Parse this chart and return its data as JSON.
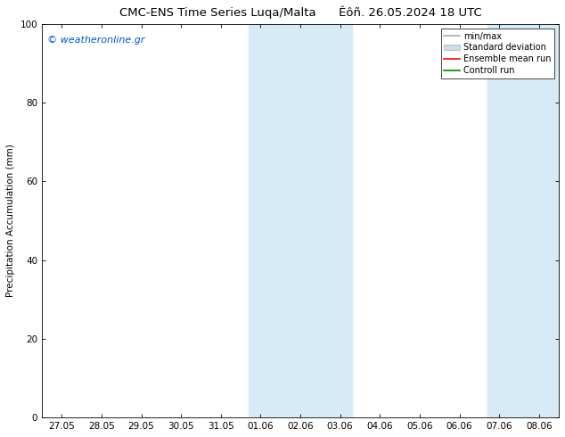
{
  "title": "CMC-ENS Time Series Luqa/Malta",
  "title_right": "Êôñ. 26.05.2024 18 UTC",
  "ylabel": "Precipitation Accumulation (mm)",
  "ylim": [
    0,
    100
  ],
  "yticks": [
    0,
    20,
    40,
    60,
    80,
    100
  ],
  "x_labels": [
    "27.05",
    "28.05",
    "29.05",
    "30.05",
    "31.05",
    "01.06",
    "02.06",
    "03.06",
    "04.06",
    "05.06",
    "06.06",
    "07.06",
    "08.06"
  ],
  "x_values": [
    0,
    1,
    2,
    3,
    4,
    5,
    6,
    7,
    8,
    9,
    10,
    11,
    12
  ],
  "xlim": [
    -0.5,
    12.5
  ],
  "shaded_regions": [
    {
      "x_start": 4.7,
      "x_end": 7.3,
      "color": "#d6eaf8"
    },
    {
      "x_start": 10.7,
      "x_end": 12.5,
      "color": "#d6eaf8"
    }
  ],
  "watermark_text": "© weatheronline.gr",
  "watermark_color": "#0055cc",
  "legend_items": [
    {
      "label": "min/max",
      "color": "#aaaaaa",
      "style": "line"
    },
    {
      "label": "Standard deviation",
      "color": "#ccddee",
      "style": "bar"
    },
    {
      "label": "Ensemble mean run",
      "color": "#ff0000",
      "style": "line"
    },
    {
      "label": "Controll run",
      "color": "#008000",
      "style": "line"
    }
  ],
  "background_color": "#ffffff",
  "border_color": "#000000",
  "font_size_title": 9.5,
  "font_size_axis": 7.5,
  "font_size_legend": 7,
  "font_size_watermark": 8
}
